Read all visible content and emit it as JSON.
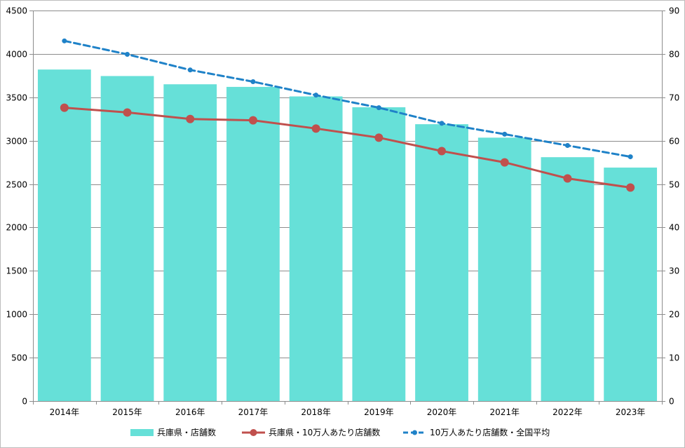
{
  "chart_data": {
    "type": "bar",
    "title": "",
    "categories": [
      "2014年",
      "2015年",
      "2016年",
      "2017年",
      "2018年",
      "2019年",
      "2020年",
      "2021年",
      "2022年",
      "2023年"
    ],
    "y_left": {
      "min": 0,
      "max": 4500,
      "step": 500
    },
    "y_right": {
      "min": 0,
      "max": 90,
      "step": 10
    },
    "grid": true,
    "legend_position": "bottom",
    "series": [
      {
        "name": "兵庫県・店舗数",
        "type": "bar",
        "axis": "left",
        "color": "#66E0D8",
        "values": [
          3820,
          3745,
          3650,
          3620,
          3510,
          3385,
          3190,
          3035,
          2810,
          2690
        ]
      },
      {
        "name": "兵庫県・10万人あたり店舗数",
        "type": "line",
        "axis": "right",
        "color": "#C0504D",
        "values": [
          67.6,
          66.5,
          65.0,
          64.7,
          62.8,
          60.7,
          57.6,
          55.0,
          51.3,
          49.2
        ]
      },
      {
        "name": "10万人あたり店舗数・全国平均",
        "type": "line",
        "axis": "right",
        "style": "dashed",
        "color": "#1F82C8",
        "values": [
          83.0,
          79.9,
          76.3,
          73.6,
          70.5,
          67.6,
          64.0,
          61.5,
          58.9,
          56.3
        ]
      }
    ]
  }
}
